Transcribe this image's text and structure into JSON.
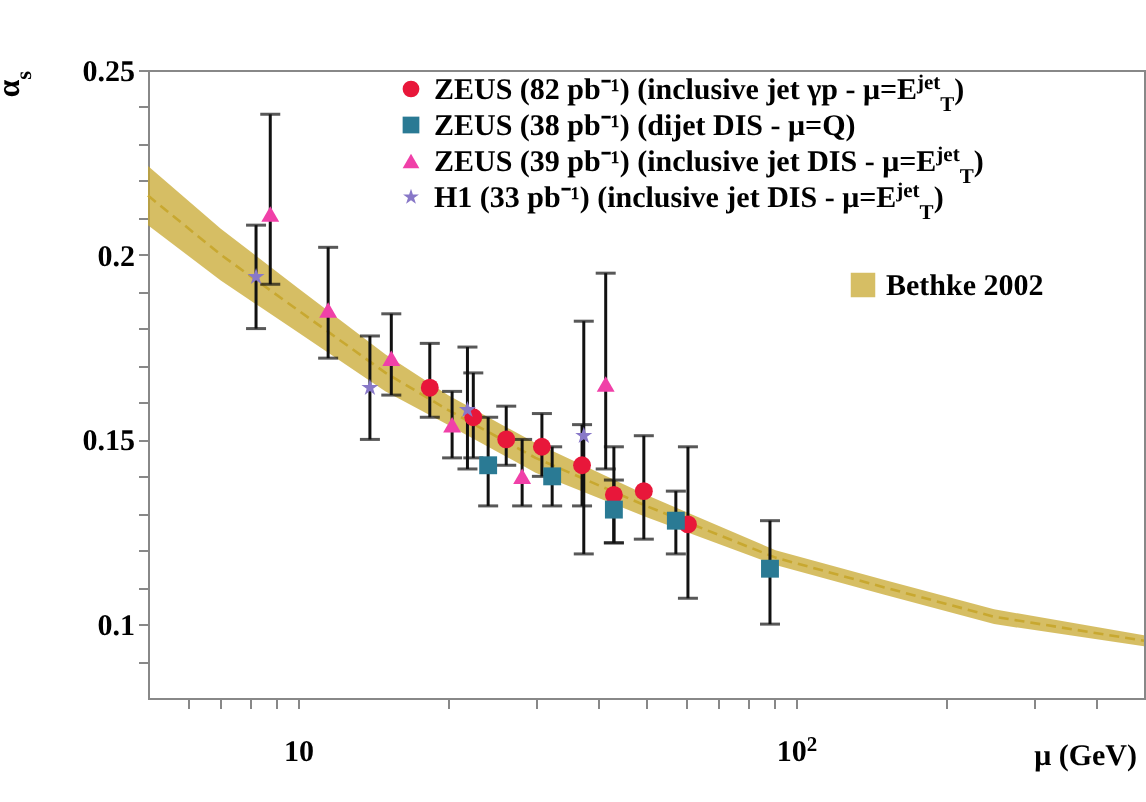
{
  "chart_data": {
    "type": "scatter",
    "xlabel": "μ (GeV)",
    "ylabel": "α$_{s}$",
    "log": "x",
    "legend": "top right",
    "xlim": [
      5,
      500
    ],
    "xticks": [
      {
        "value": 6,
        "label": null
      },
      {
        "value": 7,
        "label": null
      },
      {
        "value": 8,
        "label": null
      },
      {
        "value": 9,
        "label": null
      },
      10,
      {
        "value": 20,
        "label": null
      },
      {
        "value": 30,
        "label": null
      },
      {
        "value": 40,
        "label": null
      },
      {
        "value": 50,
        "label": null
      },
      {
        "value": 60,
        "label": null
      },
      {
        "value": 70,
        "label": null
      },
      {
        "value": 80,
        "label": null
      },
      {
        "value": 90,
        "label": null
      },
      {
        "value": 100,
        "label": "10$^{2}$"
      },
      {
        "value": 200,
        "label": null
      },
      {
        "value": 300,
        "label": null
      },
      {
        "value": 400,
        "label": null
      }
    ],
    "ylim": [
      0.08,
      0.25
    ],
    "yticks": [
      {
        "value": 0.09,
        "label": null
      },
      0.1,
      {
        "value": 0.11,
        "label": null
      },
      {
        "value": 0.12,
        "label": null
      },
      {
        "value": 0.13,
        "label": null
      },
      {
        "value": 0.14,
        "label": null
      },
      0.15,
      {
        "value": 0.16,
        "label": null
      },
      {
        "value": 0.17,
        "label": null
      },
      {
        "value": 0.18,
        "label": null
      },
      {
        "value": 0.19,
        "label": null
      },
      0.2,
      {
        "value": 0.21,
        "label": null
      },
      {
        "value": 0.22,
        "label": null
      },
      {
        "value": 0.23,
        "label": null
      },
      {
        "value": 0.24,
        "label": null
      },
      0.25
    ],
    "series": [
      {
        "name": "Bethke 2002",
        "type": "line",
        "line_style": "dashed",
        "marker": "none",
        "color": "#c8a830",
        "x": [
          5,
          7,
          10,
          15,
          20,
          30,
          50,
          91,
          150,
          250,
          500
        ],
        "values": [
          0.216,
          0.2,
          0.185,
          0.168,
          0.158,
          0.145,
          0.132,
          0.118,
          0.11,
          0.102,
          0.0955
        ],
        "lower": [
          0.208,
          0.193,
          0.179,
          0.163,
          0.154,
          0.141,
          0.129,
          0.116,
          0.108,
          0.1,
          0.094
        ],
        "upper": [
          0.224,
          0.207,
          0.191,
          0.173,
          0.162,
          0.149,
          0.135,
          0.12,
          0.112,
          0.104,
          0.097
        ]
      },
      {
        "name": "ZEUS (82 pb⁻¹) (inclusive jet γp - μ=E$^{jet}$$_{T}$)",
        "marker": "circle",
        "color": "#e8173a",
        "x": [
          18.4,
          22.5,
          26.2,
          30.9,
          37.2,
          43.1,
          49.5,
          60.7
        ],
        "values": [
          0.164,
          0.156,
          0.15,
          0.148,
          0.143,
          0.135,
          0.136,
          0.127
        ],
        "errors": [
          [
            0.156,
            0.176
          ],
          [
            0.145,
            0.168
          ],
          [
            0.143,
            0.159
          ],
          [
            0.14,
            0.157
          ],
          [
            0.132,
            0.154
          ],
          [
            0.122,
            0.148
          ],
          [
            0.123,
            0.151
          ],
          [
            0.107,
            0.148
          ]
        ]
      },
      {
        "name": "ZEUS (38 pb⁻¹) (dijet DIS - μ=Q)",
        "marker": "square",
        "color": "#2a7a94",
        "x": [
          24.1,
          32.4,
          43.1,
          57.4,
          88.7
        ],
        "values": [
          0.143,
          0.14,
          0.131,
          0.128,
          0.115
        ],
        "errors": [
          [
            0.132,
            0.156
          ],
          [
            0.132,
            0.148
          ],
          [
            0.122,
            0.139
          ],
          [
            0.119,
            0.136
          ],
          [
            0.1,
            0.128
          ]
        ]
      },
      {
        "name": "ZEUS (39 pb⁻¹) (inclusive jet DIS - μ=E$^{jet}$$_{T}$)",
        "marker": "triangle",
        "color": "#f040a8",
        "x": [
          8.8,
          11.5,
          15.4,
          20.4,
          28.2,
          41.5
        ],
        "values": [
          0.211,
          0.185,
          0.172,
          0.154,
          0.14,
          0.165
        ],
        "errors": [
          [
            0.192,
            0.238
          ],
          [
            0.172,
            0.202
          ],
          [
            0.162,
            0.184
          ],
          [
            0.145,
            0.163
          ],
          [
            0.132,
            0.15
          ],
          [
            0.142,
            0.195
          ]
        ]
      },
      {
        "name": "H1 (33 pb⁻¹) (inclusive jet DIS - μ=E$^{jet}$$_{T}$)",
        "marker": "star",
        "color": "#8878c8",
        "x": [
          8.24,
          13.95,
          21.9,
          37.5
        ],
        "values": [
          0.194,
          0.164,
          0.158,
          0.151
        ],
        "errors": [
          [
            0.18,
            0.208
          ],
          [
            0.15,
            0.178
          ],
          [
            0.142,
            0.175
          ],
          [
            0.119,
            0.182
          ]
        ]
      }
    ]
  }
}
